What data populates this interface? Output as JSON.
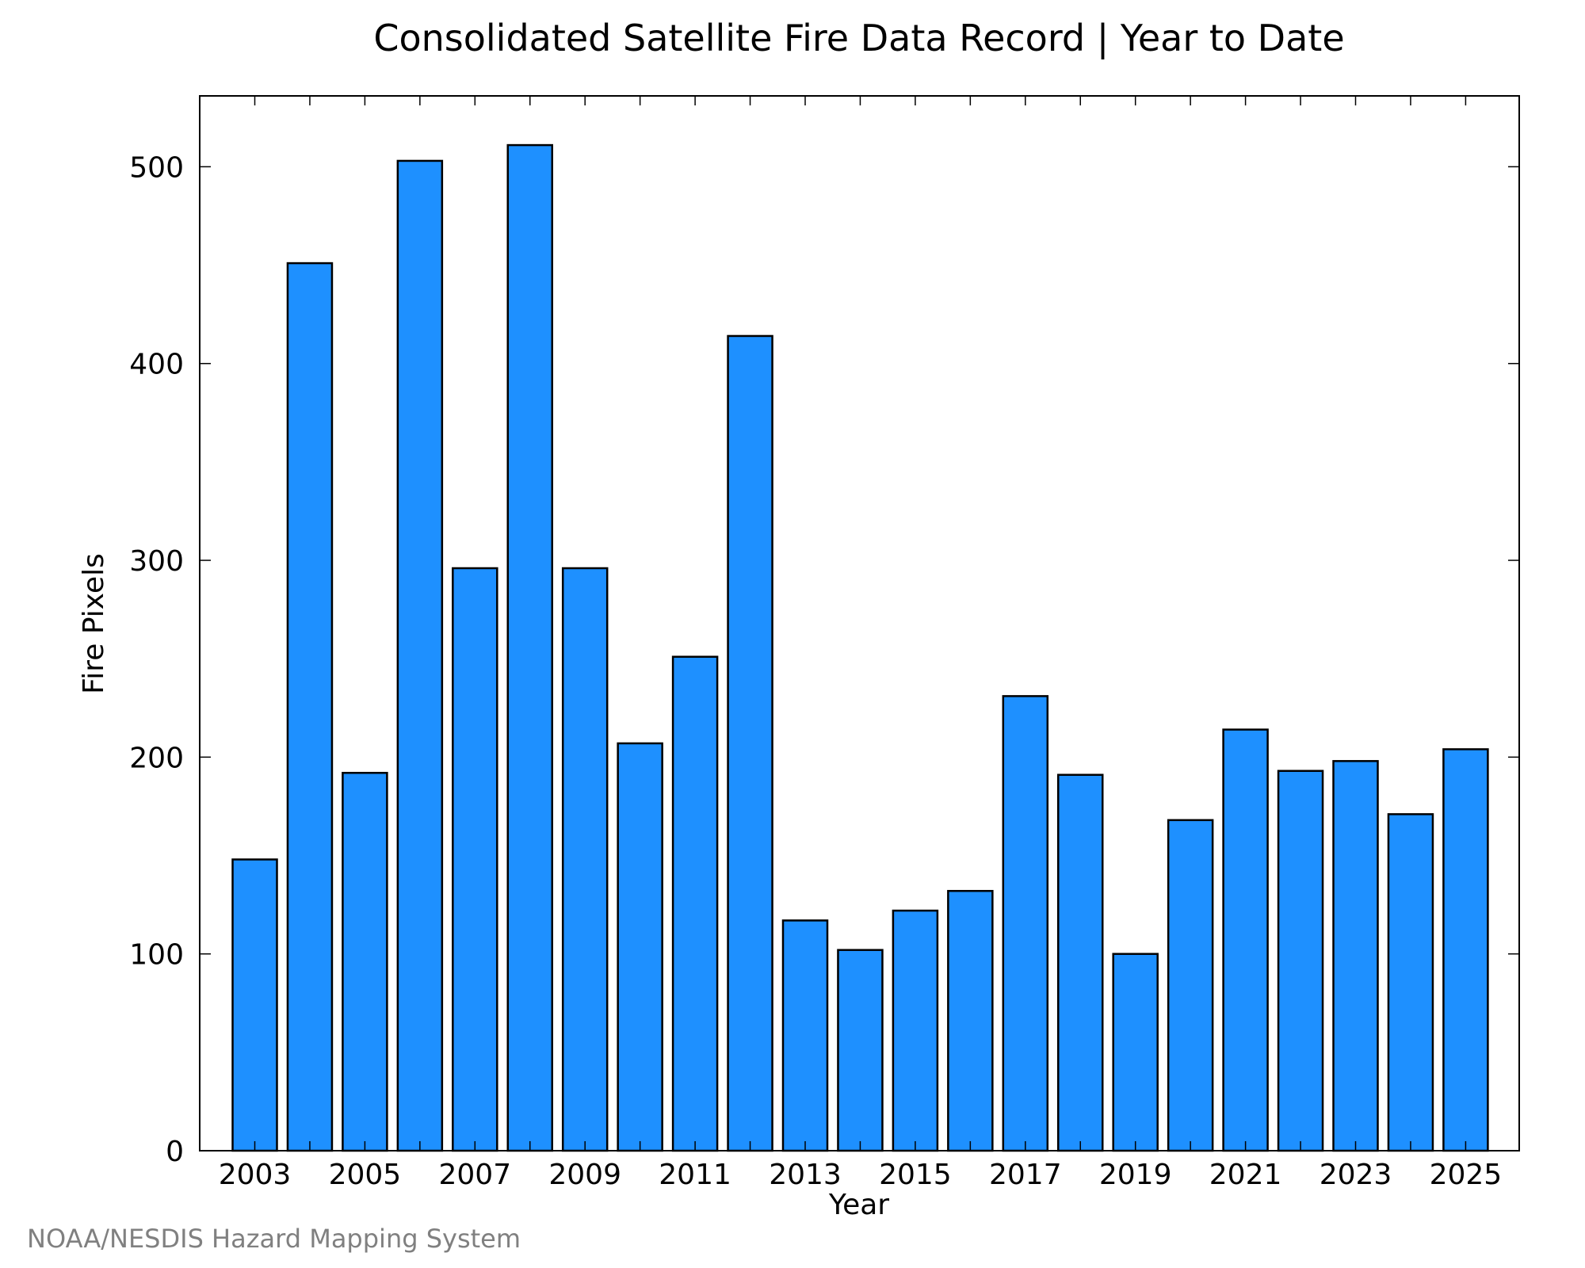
{
  "chart_data": {
    "type": "bar",
    "title": "Consolidated Satellite Fire Data Record | Year to Date",
    "xlabel": "Year",
    "ylabel": "Fire Pixels",
    "categories": [
      "2003",
      "2004",
      "2005",
      "2006",
      "2007",
      "2008",
      "2009",
      "2010",
      "2011",
      "2012",
      "2013",
      "2014",
      "2015",
      "2016",
      "2017",
      "2018",
      "2019",
      "2020",
      "2021",
      "2022",
      "2023",
      "2024",
      "2025"
    ],
    "values": [
      148,
      451,
      192,
      503,
      296,
      511,
      296,
      207,
      251,
      414,
      117,
      102,
      122,
      132,
      231,
      191,
      100,
      168,
      214,
      193,
      198,
      171,
      204
    ],
    "x_tick_labels": [
      "2003",
      "2005",
      "2007",
      "2009",
      "2011",
      "2013",
      "2015",
      "2017",
      "2019",
      "2021",
      "2023",
      "2025"
    ],
    "y_tick_labels": [
      "0",
      "100",
      "200",
      "300",
      "400",
      "500"
    ],
    "ylim": [
      0,
      536
    ],
    "bar_color": "#1e90ff",
    "grid": false,
    "legend": false
  },
  "footer": {
    "credit": "NOAA/NESDIS Hazard Mapping System"
  }
}
